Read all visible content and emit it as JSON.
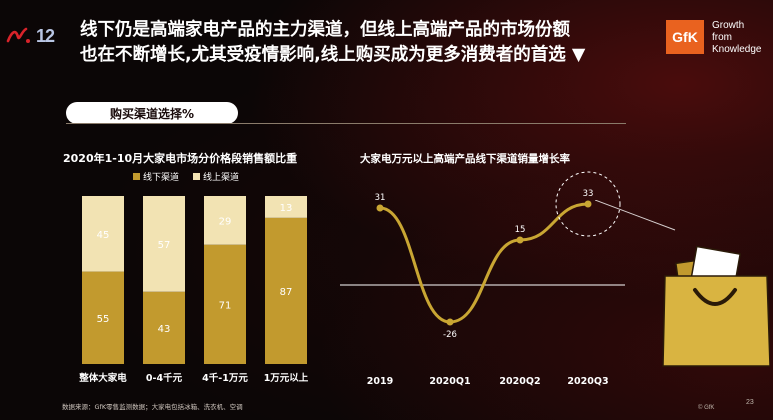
{
  "header": {
    "logo_number": "12",
    "headline_lines": [
      "线下仍是高端家电产品的主力渠道，但线上高端产品的市场份额",
      "也在不断增长,尤其受疫情影响,线上购买成为更多消费者的首选 ▼"
    ]
  },
  "brand": {
    "name": "GfK",
    "tagline_lines": [
      "Growth",
      "from",
      "Knowledge"
    ],
    "color": "#e9621f"
  },
  "section_label": "购买渠道选择%",
  "colors": {
    "offline": "#c29a2e",
    "online": "#f2e3b3",
    "line": "#c9a633",
    "axis": "#ffffff"
  },
  "chart_data": [
    {
      "type": "bar",
      "stacked": true,
      "title": "2020年1-10月大家电市场分价格段销售额比重",
      "categories": [
        "整体大家电",
        "0-4千元",
        "4千-1万元",
        "1万元以上"
      ],
      "series": [
        {
          "name": "线下渠道",
          "values": [
            55,
            43,
            71,
            87
          ]
        },
        {
          "name": "线上渠道",
          "values": [
            45,
            57,
            29,
            13
          ]
        }
      ],
      "ylim": [
        0,
        100
      ],
      "legend": "top"
    },
    {
      "type": "line",
      "title": "大家电万元以上高端产品线下渠道销量增长率",
      "categories": [
        "2019",
        "2020Q1",
        "2020Q2",
        "2020Q3"
      ],
      "series": [
        {
          "values": [
            31,
            -26,
            15,
            33
          ]
        }
      ],
      "ylim": [
        -40,
        50
      ],
      "highlight_index": 3
    }
  ],
  "footer": {
    "source": "数据来源：GfK零售监测数据；大家电包括冰箱、洗衣机、空调",
    "brand": "© GfK",
    "page": "23"
  }
}
